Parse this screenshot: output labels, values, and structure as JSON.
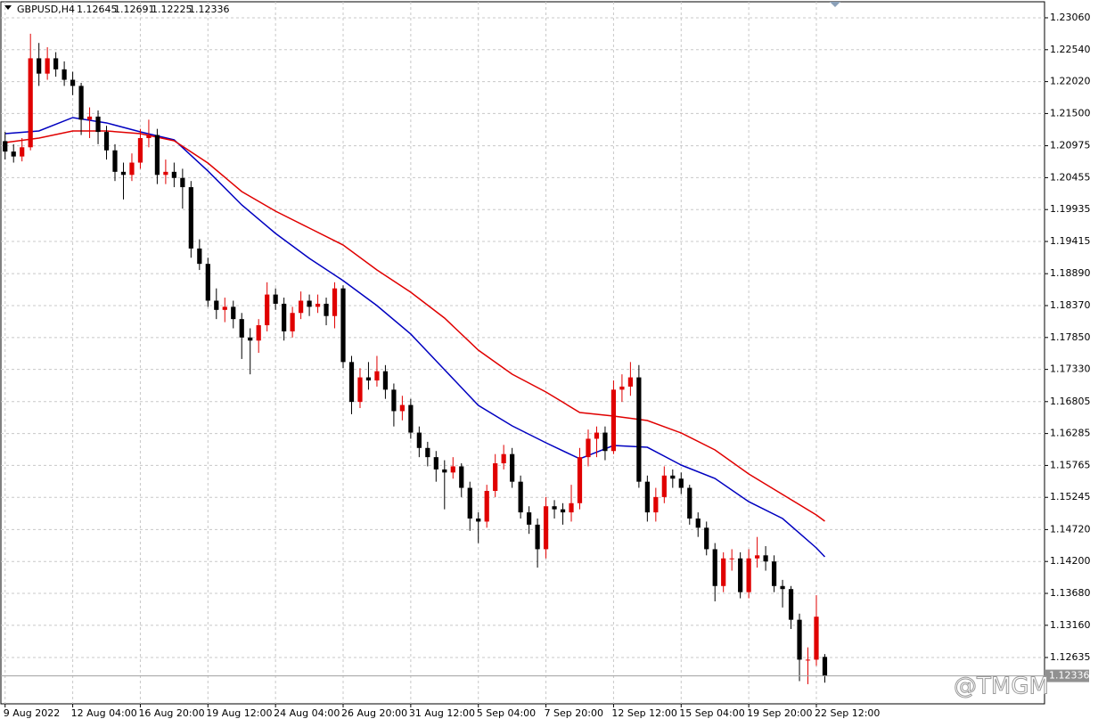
{
  "chart_data": {
    "type": "candlestick",
    "title": "GBPUSD,H4",
    "watermark": "@TMGM",
    "up_color": "#e00000",
    "down_color": "#000000",
    "grid": true,
    "xlim": [
      -0.5,
      123
    ],
    "ylim": [
      1.1188,
      1.23321
    ],
    "yticks": [
      {
        "value": 1.2306,
        "label": "1.23060"
      },
      {
        "value": 1.2254,
        "label": "1.22540"
      },
      {
        "value": 1.2202,
        "label": "1.22020"
      },
      {
        "value": 1.215,
        "label": "1.21500"
      },
      1.20975,
      1.20455,
      1.19935,
      1.19415,
      {
        "value": 1.1889,
        "label": "1.18890"
      },
      {
        "value": 1.1837,
        "label": "1.18370"
      },
      {
        "value": 1.1785,
        "label": "1.17850"
      },
      {
        "value": 1.1733,
        "label": "1.17330"
      },
      1.16805,
      1.16285,
      1.15765,
      1.15245,
      {
        "value": 1.1472,
        "label": "1.14720"
      },
      {
        "value": 1.142,
        "label": "1.14200"
      },
      {
        "value": 1.1368,
        "label": "1.13680"
      },
      {
        "value": 1.1316,
        "label": "1.13160"
      },
      1.12635
    ],
    "xticks": [
      {
        "value": 0,
        "label": "9 Aug 2022"
      },
      {
        "value": 8,
        "label": "12 Aug 04:00"
      },
      {
        "value": 16,
        "label": "16 Aug 20:00"
      },
      {
        "value": 24,
        "label": "19 Aug 12:00"
      },
      {
        "value": 32,
        "label": "24 Aug 04:00"
      },
      {
        "value": 40,
        "label": "26 Aug 20:00"
      },
      {
        "value": 48,
        "label": "31 Aug 12:00"
      },
      {
        "value": 56,
        "label": "5 Sep 04:00"
      },
      {
        "value": 64,
        "label": "7 Sep 20:00"
      },
      {
        "value": 72,
        "label": "12 Sep 12:00"
      },
      {
        "value": 80,
        "label": "15 Sep 04:00"
      },
      {
        "value": 88,
        "label": "19 Sep 20:00"
      },
      {
        "value": 96,
        "label": "22 Sep 12:00"
      }
    ],
    "ohlc": [
      [
        1.2105,
        1.212,
        1.2075,
        1.2088
      ],
      [
        1.2088,
        1.21,
        1.207,
        1.208
      ],
      [
        1.208,
        1.211,
        1.2072,
        1.2095
      ],
      [
        1.2095,
        1.228,
        1.209,
        1.224
      ],
      [
        1.224,
        1.2265,
        1.2195,
        1.2215
      ],
      [
        1.2215,
        1.2258,
        1.2205,
        1.224
      ],
      [
        1.224,
        1.225,
        1.221,
        1.2222
      ],
      [
        1.2222,
        1.2235,
        1.2195,
        1.2205
      ],
      [
        1.2205,
        1.2218,
        1.218,
        1.2195
      ],
      [
        1.2195,
        1.22,
        1.2115,
        1.214
      ],
      [
        1.214,
        1.216,
        1.211,
        1.2145
      ],
      [
        1.2145,
        1.2155,
        1.21,
        1.212
      ],
      [
        1.212,
        1.213,
        1.2075,
        1.209
      ],
      [
        1.209,
        1.21,
        1.204,
        1.2055
      ],
      [
        1.2055,
        1.207,
        1.201,
        1.205
      ],
      [
        1.205,
        1.2085,
        1.204,
        1.207
      ],
      [
        1.207,
        1.2125,
        1.206,
        1.211
      ],
      [
        1.211,
        1.214,
        1.2095,
        1.2115
      ],
      [
        1.2115,
        1.2125,
        1.2035,
        1.205
      ],
      [
        1.205,
        1.2075,
        1.2035,
        1.2055
      ],
      [
        1.2055,
        1.207,
        1.203,
        1.2045
      ],
      [
        1.2045,
        1.206,
        1.1995,
        1.203
      ],
      [
        1.203,
        1.204,
        1.1915,
        1.193
      ],
      [
        1.193,
        1.1945,
        1.1895,
        1.1905
      ],
      [
        1.1905,
        1.1915,
        1.1835,
        1.1845
      ],
      [
        1.1845,
        1.1865,
        1.1815,
        1.183
      ],
      [
        1.183,
        1.185,
        1.181,
        1.1835
      ],
      [
        1.1835,
        1.1845,
        1.18,
        1.1815
      ],
      [
        1.1815,
        1.1825,
        1.175,
        1.1785
      ],
      [
        1.1785,
        1.18,
        1.1725,
        1.178
      ],
      [
        1.178,
        1.1815,
        1.176,
        1.1805
      ],
      [
        1.1805,
        1.1875,
        1.1795,
        1.1855
      ],
      [
        1.1855,
        1.1865,
        1.183,
        1.184
      ],
      [
        1.184,
        1.185,
        1.178,
        1.1795
      ],
      [
        1.1795,
        1.1835,
        1.1785,
        1.1825
      ],
      [
        1.1825,
        1.186,
        1.1815,
        1.1845
      ],
      [
        1.1845,
        1.1855,
        1.182,
        1.1835
      ],
      [
        1.1835,
        1.1855,
        1.1825,
        1.184
      ],
      [
        1.184,
        1.185,
        1.1805,
        1.182
      ],
      [
        1.182,
        1.1875,
        1.18,
        1.1865
      ],
      [
        1.1865,
        1.187,
        1.1735,
        1.1745
      ],
      [
        1.1745,
        1.1755,
        1.166,
        1.168
      ],
      [
        1.168,
        1.1735,
        1.167,
        1.172
      ],
      [
        1.172,
        1.1745,
        1.17,
        1.1715
      ],
      [
        1.1715,
        1.1755,
        1.1705,
        1.173
      ],
      [
        1.173,
        1.174,
        1.1685,
        1.17
      ],
      [
        1.17,
        1.171,
        1.164,
        1.1665
      ],
      [
        1.1665,
        1.169,
        1.165,
        1.1675
      ],
      [
        1.1675,
        1.1685,
        1.162,
        1.163
      ],
      [
        1.163,
        1.164,
        1.159,
        1.1605
      ],
      [
        1.1605,
        1.1615,
        1.1575,
        1.159
      ],
      [
        1.159,
        1.16,
        1.155,
        1.157
      ],
      [
        1.157,
        1.1585,
        1.1505,
        1.1565
      ],
      [
        1.1565,
        1.159,
        1.1555,
        1.1575
      ],
      [
        1.1575,
        1.158,
        1.1525,
        1.154
      ],
      [
        1.154,
        1.155,
        1.147,
        1.149
      ],
      [
        1.149,
        1.15,
        1.145,
        1.1485
      ],
      [
        1.1485,
        1.1545,
        1.1475,
        1.1535
      ],
      [
        1.1535,
        1.1595,
        1.1525,
        1.158
      ],
      [
        1.158,
        1.161,
        1.157,
        1.1595
      ],
      [
        1.1595,
        1.1605,
        1.154,
        1.155
      ],
      [
        1.155,
        1.156,
        1.149,
        1.15
      ],
      [
        1.15,
        1.151,
        1.1465,
        1.148
      ],
      [
        1.148,
        1.149,
        1.141,
        1.144
      ],
      [
        1.144,
        1.1525,
        1.1425,
        1.151
      ],
      [
        1.151,
        1.152,
        1.149,
        1.1505
      ],
      [
        1.1505,
        1.1515,
        1.148,
        1.15
      ],
      [
        1.15,
        1.1545,
        1.1485,
        1.1515
      ],
      [
        1.1515,
        1.1605,
        1.1505,
        1.159
      ],
      [
        1.159,
        1.1635,
        1.1575,
        1.162
      ],
      [
        1.162,
        1.164,
        1.159,
        1.163
      ],
      [
        1.163,
        1.164,
        1.1585,
        1.16
      ],
      [
        1.16,
        1.1715,
        1.1595,
        1.17
      ],
      [
        1.17,
        1.1725,
        1.168,
        1.1705
      ],
      [
        1.1705,
        1.1745,
        1.169,
        1.172
      ],
      [
        1.172,
        1.174,
        1.154,
        1.155
      ],
      [
        1.155,
        1.156,
        1.1485,
        1.15
      ],
      [
        1.15,
        1.154,
        1.1485,
        1.1525
      ],
      [
        1.1525,
        1.1575,
        1.1515,
        1.156
      ],
      [
        1.156,
        1.157,
        1.154,
        1.1555
      ],
      [
        1.1555,
        1.1565,
        1.153,
        1.154
      ],
      [
        1.154,
        1.1545,
        1.148,
        1.149
      ],
      [
        1.149,
        1.15,
        1.146,
        1.1475
      ],
      [
        1.1475,
        1.1485,
        1.143,
        1.144
      ],
      [
        1.144,
        1.145,
        1.1355,
        1.138
      ],
      [
        1.138,
        1.1435,
        1.137,
        1.1425
      ],
      [
        1.1425,
        1.144,
        1.1405,
        1.1425
      ],
      [
        1.1425,
        1.1435,
        1.136,
        1.137
      ],
      [
        1.137,
        1.144,
        1.136,
        1.1425
      ],
      [
        1.1425,
        1.146,
        1.141,
        1.143
      ],
      [
        1.143,
        1.1445,
        1.1405,
        1.142
      ],
      [
        1.142,
        1.143,
        1.137,
        1.138
      ],
      [
        1.138,
        1.139,
        1.1345,
        1.1375
      ],
      [
        1.1375,
        1.138,
        1.131,
        1.1325
      ],
      [
        1.1325,
        1.1335,
        1.1225,
        1.126
      ],
      [
        1.126,
        1.128,
        1.122,
        1.126
      ],
      [
        1.126,
        1.1365,
        1.125,
        1.133
      ],
      [
        1.12645,
        1.12691,
        1.12225,
        1.12336
      ]
    ],
    "lines": [
      {
        "color": "#0000c0",
        "x": [
          0,
          4,
          8,
          12,
          16,
          20,
          24,
          28,
          32,
          36,
          40,
          44,
          48,
          52,
          56,
          60,
          64,
          68,
          72,
          76,
          80,
          84,
          88,
          92,
          96,
          97
        ],
        "values": [
          1.21172,
          1.21216,
          1.21434,
          1.21347,
          1.21201,
          1.21071,
          1.20563,
          1.20011,
          1.19546,
          1.1914,
          1.18777,
          1.1837,
          1.17906,
          1.17325,
          1.16744,
          1.1641,
          1.16134,
          1.15873,
          1.1609,
          1.16061,
          1.15771,
          1.15553,
          1.15175,
          1.149,
          1.14421,
          1.14276
        ]
      },
      {
        "color": "#e00000",
        "x": [
          0,
          4,
          8,
          12,
          16,
          20,
          24,
          28,
          32,
          36,
          40,
          44,
          48,
          52,
          56,
          60,
          64,
          68,
          72,
          76,
          80,
          84,
          88,
          92,
          96,
          97
        ],
        "values": [
          1.21027,
          1.211,
          1.21216,
          1.21216,
          1.21172,
          1.21056,
          1.20693,
          1.20229,
          1.19909,
          1.19633,
          1.19357,
          1.18951,
          1.18588,
          1.18167,
          1.17644,
          1.17252,
          1.16962,
          1.16628,
          1.1657,
          1.16497,
          1.16294,
          1.16018,
          1.15626,
          1.15292,
          1.14958,
          1.14856
        ]
      }
    ]
  }
}
